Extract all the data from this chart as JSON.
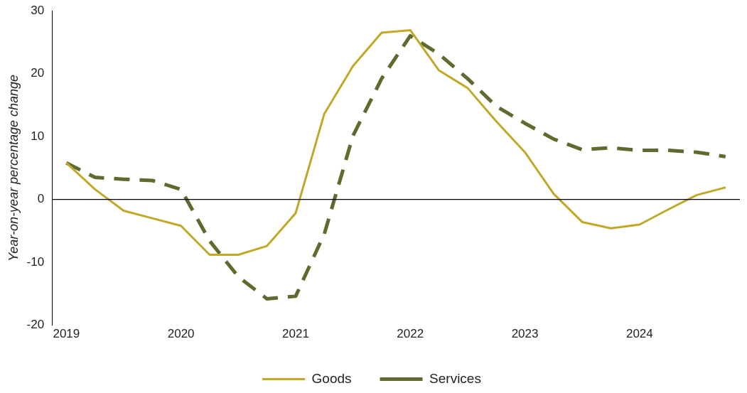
{
  "chart_data": {
    "type": "line",
    "ylabel": "Year-on-year percentage change",
    "categories": [
      "2019",
      null,
      null,
      null,
      "2020",
      null,
      null,
      null,
      "2021",
      null,
      null,
      null,
      "2022",
      null,
      null,
      null,
      "2023",
      null,
      null,
      null,
      "2024",
      null,
      null,
      null
    ],
    "series": [
      {
        "name": "Goods",
        "color": "#c2a827",
        "line_style": "solid",
        "values": [
          5.8,
          1.6,
          -1.8,
          -3.0,
          -4.2,
          -8.8,
          -8.8,
          -7.4,
          -2.2,
          13.6,
          21.2,
          26.5,
          26.9,
          20.5,
          17.7,
          12.4,
          7.5,
          0.9,
          -3.6,
          -4.6,
          -4.0,
          -1.6,
          0.7,
          1.9
        ]
      },
      {
        "name": "Services",
        "color": "#5f6b2e",
        "line_style": "dashed",
        "values": [
          5.8,
          3.5,
          3.2,
          3.0,
          1.6,
          -6.6,
          -12.3,
          -15.8,
          -15.4,
          -5.5,
          10.1,
          19.2,
          26.0,
          23.1,
          19.2,
          14.8,
          12.1,
          9.6,
          7.9,
          8.2,
          7.8,
          7.8,
          7.5,
          6.8
        ]
      }
    ],
    "ylim": [
      -20,
      30
    ],
    "yticks": [
      -20,
      -10,
      0,
      10,
      20,
      30
    ],
    "grid": false,
    "ref_lines": [
      {
        "axis": "y",
        "value": 0,
        "color": "#000000"
      }
    ],
    "legend": "bottom",
    "marker": "none"
  }
}
